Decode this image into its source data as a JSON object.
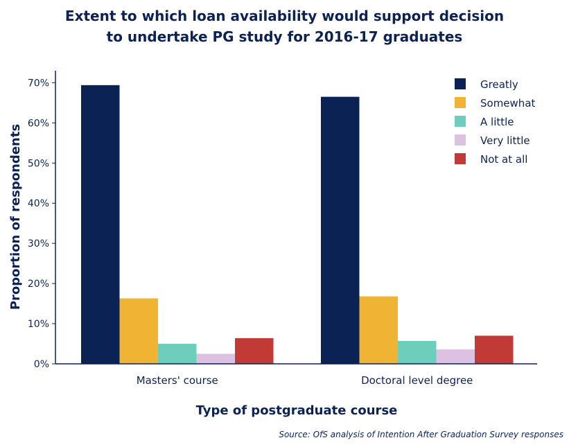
{
  "chart_data": {
    "type": "bar",
    "title_line1": "Extent to which loan availability  would support decision",
    "title_line2": "to undertake PG study for 2016-17 graduates",
    "xlabel": "Type of postgraduate course",
    "ylabel": "Proportion of respondents",
    "categories": [
      "Masters' course",
      "Doctoral level degree"
    ],
    "series": [
      {
        "name": "Greatly",
        "color": "#0b2254",
        "values": [
          69.4,
          66.5
        ]
      },
      {
        "name": "Somewhat",
        "color": "#f0b434",
        "values": [
          16.3,
          16.8
        ]
      },
      {
        "name": "A little",
        "color": "#6ecebc",
        "values": [
          5.0,
          5.7
        ]
      },
      {
        "name": "Very little",
        "color": "#dcc1e2",
        "values": [
          2.5,
          3.6
        ]
      },
      {
        "name": "Not at all",
        "color": "#c23a35",
        "values": [
          6.4,
          7.0
        ]
      }
    ],
    "ylim": [
      0,
      73
    ],
    "yticks": [
      0,
      10,
      20,
      30,
      40,
      50,
      60,
      70
    ],
    "ytick_labels": [
      "0%",
      "10%",
      "20%",
      "30%",
      "40%",
      "50%",
      "60%",
      "70%"
    ],
    "grid": false,
    "legend_position": "top-right",
    "source": "Source: OfS analysis of Intention After Graduation Survey responses"
  }
}
